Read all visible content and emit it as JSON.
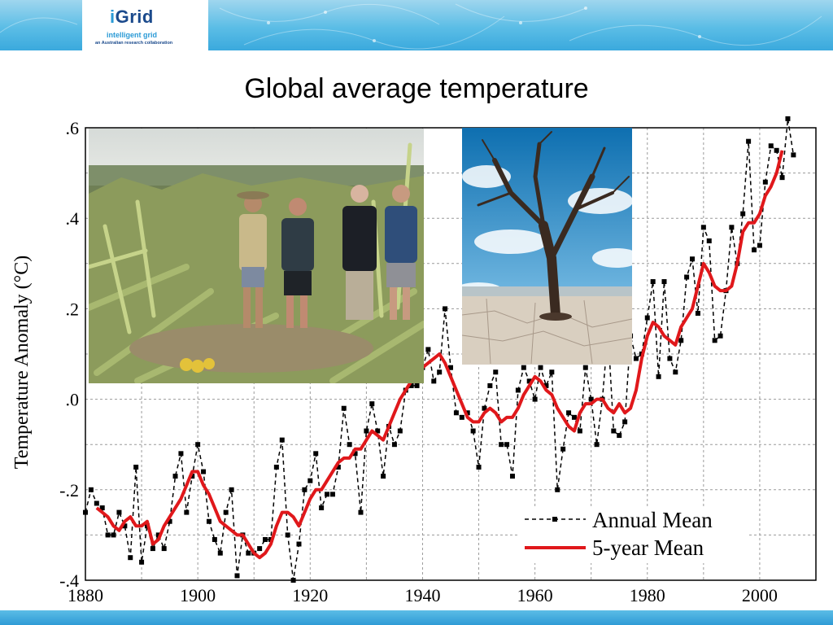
{
  "header": {
    "logo_i": "i",
    "logo_main": "Grid",
    "logo_sub": "intelligent grid",
    "logo_tag": "an Australian research collaboration"
  },
  "slide": {
    "title": "Global average temperature"
  },
  "colors": {
    "annual": "#000000",
    "five_year": "#e0181b",
    "banner": "#4bb3e3"
  },
  "photos": [
    {
      "name": "storm-damaged-banana-plantation"
    },
    {
      "name": "dead-tree-on-cracked-dry-lakebed"
    }
  ],
  "chart_data": {
    "type": "line",
    "title": "",
    "xlabel": "",
    "ylabel": "Temperature Anomaly (°C)",
    "xlim": [
      1880,
      2010
    ],
    "ylim": [
      -0.4,
      0.6
    ],
    "xticks": [
      1880,
      1900,
      1920,
      1940,
      1960,
      1980,
      2000
    ],
    "xtick_labels": [
      "1880",
      "1900",
      "1920",
      "1940",
      "1960",
      "1980",
      "2000"
    ],
    "yticks": [
      -0.4,
      -0.2,
      0.0,
      0.2,
      0.4,
      0.6
    ],
    "ytick_labels": [
      "-.4",
      "-.2",
      ".0",
      ".2",
      ".4",
      ".6"
    ],
    "grid": true,
    "legend_position": "bottom-right",
    "series": [
      {
        "name": "Annual Mean",
        "style": "dashed-square-markers",
        "x": [
          1880,
          1881,
          1882,
          1883,
          1884,
          1885,
          1886,
          1887,
          1888,
          1889,
          1890,
          1891,
          1892,
          1893,
          1894,
          1895,
          1896,
          1897,
          1898,
          1899,
          1900,
          1901,
          1902,
          1903,
          1904,
          1905,
          1906,
          1907,
          1908,
          1909,
          1910,
          1911,
          1912,
          1913,
          1914,
          1915,
          1916,
          1917,
          1918,
          1919,
          1920,
          1921,
          1922,
          1923,
          1924,
          1925,
          1926,
          1927,
          1928,
          1929,
          1930,
          1931,
          1932,
          1933,
          1934,
          1935,
          1936,
          1937,
          1938,
          1939,
          1940,
          1941,
          1942,
          1943,
          1944,
          1945,
          1946,
          1947,
          1948,
          1949,
          1950,
          1951,
          1952,
          1953,
          1954,
          1955,
          1956,
          1957,
          1958,
          1959,
          1960,
          1961,
          1962,
          1963,
          1964,
          1965,
          1966,
          1967,
          1968,
          1969,
          1970,
          1971,
          1972,
          1973,
          1974,
          1975,
          1976,
          1977,
          1978,
          1979,
          1980,
          1981,
          1982,
          1983,
          1984,
          1985,
          1986,
          1987,
          1988,
          1989,
          1990,
          1991,
          1992,
          1993,
          1994,
          1995,
          1996,
          1997,
          1998,
          1999,
          2000,
          2001,
          2002,
          2003,
          2004,
          2005,
          2006
        ],
        "y": [
          -0.25,
          -0.2,
          -0.23,
          -0.24,
          -0.3,
          -0.3,
          -0.25,
          -0.28,
          -0.35,
          -0.15,
          -0.36,
          -0.28,
          -0.33,
          -0.3,
          -0.33,
          -0.27,
          -0.17,
          -0.12,
          -0.25,
          -0.17,
          -0.1,
          -0.16,
          -0.27,
          -0.31,
          -0.34,
          -0.25,
          -0.2,
          -0.39,
          -0.3,
          -0.34,
          -0.34,
          -0.33,
          -0.31,
          -0.31,
          -0.15,
          -0.09,
          -0.3,
          -0.4,
          -0.32,
          -0.2,
          -0.18,
          -0.12,
          -0.24,
          -0.21,
          -0.21,
          -0.15,
          -0.02,
          -0.1,
          -0.12,
          -0.25,
          -0.07,
          -0.01,
          -0.07,
          -0.17,
          -0.06,
          -0.1,
          -0.07,
          0.02,
          0.03,
          0.03,
          0.07,
          0.11,
          0.04,
          0.06,
          0.2,
          0.07,
          -0.03,
          -0.04,
          -0.03,
          -0.07,
          -0.15,
          -0.02,
          0.03,
          0.06,
          -0.1,
          -0.1,
          -0.17,
          0.02,
          0.07,
          0.04,
          0.0,
          0.07,
          0.03,
          0.06,
          -0.2,
          -0.11,
          -0.03,
          -0.04,
          -0.07,
          0.07,
          0.0,
          -0.1,
          0.0,
          0.15,
          -0.07,
          -0.08,
          -0.05,
          0.14,
          0.09,
          0.1,
          0.18,
          0.26,
          0.05,
          0.26,
          0.09,
          0.06,
          0.13,
          0.27,
          0.31,
          0.19,
          0.38,
          0.35,
          0.13,
          0.14,
          0.24,
          0.38,
          0.3,
          0.41,
          0.57,
          0.33,
          0.34,
          0.48,
          0.56,
          0.55,
          0.49,
          0.62,
          0.54
        ]
      },
      {
        "name": "5-year Mean",
        "style": "solid-thick",
        "x": [
          1882,
          1883,
          1884,
          1885,
          1886,
          1887,
          1888,
          1889,
          1890,
          1891,
          1892,
          1893,
          1894,
          1895,
          1896,
          1897,
          1898,
          1899,
          1900,
          1901,
          1902,
          1903,
          1904,
          1905,
          1906,
          1907,
          1908,
          1909,
          1910,
          1911,
          1912,
          1913,
          1914,
          1915,
          1916,
          1917,
          1918,
          1919,
          1920,
          1921,
          1922,
          1923,
          1924,
          1925,
          1926,
          1927,
          1928,
          1929,
          1930,
          1931,
          1932,
          1933,
          1934,
          1935,
          1936,
          1937,
          1938,
          1939,
          1940,
          1941,
          1942,
          1943,
          1944,
          1945,
          1946,
          1947,
          1948,
          1949,
          1950,
          1951,
          1952,
          1953,
          1954,
          1955,
          1956,
          1957,
          1958,
          1959,
          1960,
          1961,
          1962,
          1963,
          1964,
          1965,
          1966,
          1967,
          1968,
          1969,
          1970,
          1971,
          1972,
          1973,
          1974,
          1975,
          1976,
          1977,
          1978,
          1979,
          1980,
          1981,
          1982,
          1983,
          1984,
          1985,
          1986,
          1987,
          1988,
          1989,
          1990,
          1991,
          1992,
          1993,
          1994,
          1995,
          1996,
          1997,
          1998,
          1999,
          2000,
          2001,
          2002,
          2003,
          2004
        ],
        "y": [
          -0.24,
          -0.25,
          -0.26,
          -0.28,
          -0.29,
          -0.27,
          -0.26,
          -0.28,
          -0.28,
          -0.27,
          -0.32,
          -0.31,
          -0.28,
          -0.26,
          -0.24,
          -0.22,
          -0.19,
          -0.16,
          -0.16,
          -0.19,
          -0.21,
          -0.24,
          -0.27,
          -0.28,
          -0.29,
          -0.3,
          -0.3,
          -0.32,
          -0.34,
          -0.35,
          -0.34,
          -0.32,
          -0.28,
          -0.25,
          -0.25,
          -0.26,
          -0.28,
          -0.25,
          -0.22,
          -0.2,
          -0.2,
          -0.18,
          -0.16,
          -0.14,
          -0.13,
          -0.13,
          -0.11,
          -0.11,
          -0.09,
          -0.07,
          -0.08,
          -0.09,
          -0.06,
          -0.03,
          0.0,
          0.02,
          0.04,
          0.05,
          0.07,
          0.08,
          0.09,
          0.1,
          0.08,
          0.05,
          0.02,
          -0.01,
          -0.04,
          -0.05,
          -0.05,
          -0.03,
          -0.02,
          -0.03,
          -0.05,
          -0.04,
          -0.04,
          -0.02,
          0.01,
          0.03,
          0.05,
          0.04,
          0.02,
          0.01,
          -0.02,
          -0.04,
          -0.06,
          -0.07,
          -0.03,
          -0.01,
          -0.01,
          0.0,
          0.0,
          -0.02,
          -0.03,
          -0.01,
          -0.03,
          -0.02,
          0.02,
          0.09,
          0.14,
          0.17,
          0.16,
          0.14,
          0.13,
          0.12,
          0.16,
          0.18,
          0.2,
          0.25,
          0.3,
          0.28,
          0.25,
          0.24,
          0.24,
          0.25,
          0.3,
          0.37,
          0.39,
          0.39,
          0.41,
          0.45,
          0.47,
          0.5,
          0.55
        ]
      }
    ]
  }
}
